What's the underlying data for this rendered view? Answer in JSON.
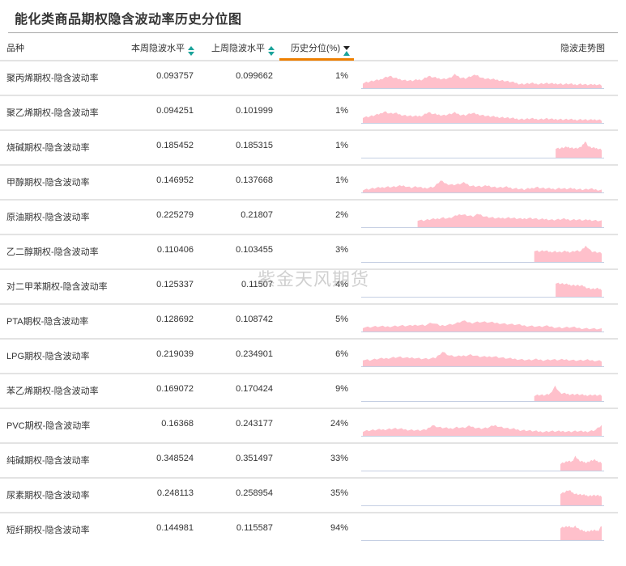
{
  "title": "能化类商品期权隐含波动率历史分位图",
  "watermark": "紫金天风期货",
  "colors": {
    "accent_orange": "#ee7f00",
    "sort_teal": "#1aa39a",
    "sort_dark": "#222222",
    "spark_fill": "#ffc0cb",
    "spark_baseline": "#c5cfe3",
    "row_border": "#e3e3e3"
  },
  "header": {
    "col_name": "品种",
    "col_this_week": "本周隐波水平",
    "col_last_week": "上周隐波水平",
    "col_percentile": "历史分位(%)",
    "col_trend": "隐波走势图",
    "sort_icons": {
      "this_week": "sort-both-icon",
      "last_week": "sort-both-icon",
      "percentile": "sort-ascending-active-icon"
    }
  },
  "rows": [
    {
      "name": "聚丙烯期权-隐含波动率",
      "this_week": "0.093757",
      "last_week": "0.099662",
      "percentile": "1%"
    },
    {
      "name": "聚乙烯期权-隐含波动率",
      "this_week": "0.094251",
      "last_week": "0.101999",
      "percentile": "1%"
    },
    {
      "name": "烧碱期权-隐含波动率",
      "this_week": "0.185452",
      "last_week": "0.185315",
      "percentile": "1%"
    },
    {
      "name": "甲醇期权-隐含波动率",
      "this_week": "0.146952",
      "last_week": "0.137668",
      "percentile": "1%"
    },
    {
      "name": "原油期权-隐含波动率",
      "this_week": "0.225279",
      "last_week": "0.21807",
      "percentile": "2%"
    },
    {
      "name": "乙二醇期权-隐含波动率",
      "this_week": "0.110406",
      "last_week": "0.103455",
      "percentile": "3%"
    },
    {
      "name": "对二甲苯期权-隐含波动率",
      "this_week": "0.125337",
      "last_week": "0.11507",
      "percentile": "4%"
    },
    {
      "name": "PTA期权-隐含波动率",
      "this_week": "0.128692",
      "last_week": "0.108742",
      "percentile": "5%"
    },
    {
      "name": "LPG期权-隐含波动率",
      "this_week": "0.219039",
      "last_week": "0.234901",
      "percentile": "6%"
    },
    {
      "name": "苯乙烯期权-隐含波动率",
      "this_week": "0.169072",
      "last_week": "0.170424",
      "percentile": "9%"
    },
    {
      "name": "PVC期权-隐含波动率",
      "this_week": "0.16368",
      "last_week": "0.243177",
      "percentile": "24%"
    },
    {
      "name": "纯碱期权-隐含波动率",
      "this_week": "0.348524",
      "last_week": "0.351497",
      "percentile": "33%"
    },
    {
      "name": "尿素期权-隐含波动率",
      "this_week": "0.248113",
      "last_week": "0.258954",
      "percentile": "35%"
    },
    {
      "name": "短纤期权-隐含波动率",
      "this_week": "0.144981",
      "last_week": "0.115587",
      "percentile": "94%"
    }
  ],
  "chart_data": {
    "type": "table",
    "title": "能化类商品期权隐含波动率历史分位图",
    "columns": [
      "品种",
      "本周隐波水平",
      "上周隐波水平",
      "历史分位(%)",
      "隐波走势图"
    ],
    "sorted_by": "历史分位(%)",
    "sort_order": "ascending",
    "categories": [
      "聚丙烯",
      "聚乙烯",
      "烧碱",
      "甲醇",
      "原油",
      "乙二醇",
      "对二甲苯",
      "PTA",
      "LPG",
      "苯乙烯",
      "PVC",
      "纯碱",
      "尿素",
      "短纤"
    ],
    "series": [
      {
        "name": "本周隐波水平",
        "values": [
          0.093757,
          0.094251,
          0.185452,
          0.146952,
          0.225279,
          0.110406,
          0.125337,
          0.128692,
          0.219039,
          0.169072,
          0.16368,
          0.348524,
          0.248113,
          0.144981
        ]
      },
      {
        "name": "上周隐波水平",
        "values": [
          0.099662,
          0.101999,
          0.185315,
          0.137668,
          0.21807,
          0.103455,
          0.11507,
          0.108742,
          0.234901,
          0.170424,
          0.243177,
          0.351497,
          0.258954,
          0.115587
        ]
      },
      {
        "name": "历史分位(%)",
        "values": [
          1,
          1,
          1,
          1,
          2,
          3,
          4,
          5,
          6,
          9,
          24,
          33,
          35,
          94
        ]
      }
    ],
    "sparklines": {
      "type": "area",
      "description": "Relative implied-volatility history per product; values normalized 0-1 (share of sparkline height). start = fraction of time axis where data begins.",
      "series": [
        {
          "name": "聚丙烯",
          "start": 0.0,
          "points": [
            0.28,
            0.32,
            0.38,
            0.42,
            0.55,
            0.62,
            0.5,
            0.45,
            0.4,
            0.38,
            0.42,
            0.45,
            0.62,
            0.55,
            0.5,
            0.48,
            0.52,
            0.7,
            0.55,
            0.5,
            0.62,
            0.68,
            0.52,
            0.48,
            0.45,
            0.42,
            0.38,
            0.33,
            0.28,
            0.22,
            0.22,
            0.25,
            0.22,
            0.24,
            0.25,
            0.22,
            0.24,
            0.2,
            0.22,
            0.18,
            0.22,
            0.18,
            0.17,
            0.2,
            0.16
          ]
        },
        {
          "name": "聚乙烯",
          "start": 0.0,
          "points": [
            0.3,
            0.32,
            0.38,
            0.45,
            0.6,
            0.48,
            0.5,
            0.42,
            0.38,
            0.35,
            0.34,
            0.38,
            0.55,
            0.45,
            0.42,
            0.4,
            0.45,
            0.52,
            0.42,
            0.4,
            0.5,
            0.45,
            0.4,
            0.35,
            0.32,
            0.3,
            0.28,
            0.25,
            0.22,
            0.2,
            0.2,
            0.22,
            0.2,
            0.2,
            0.22,
            0.18,
            0.2,
            0.18,
            0.18,
            0.16,
            0.18,
            0.16,
            0.15,
            0.18,
            0.14
          ]
        },
        {
          "name": "烧碱",
          "start": 0.81,
          "points": [
            0.5,
            0.48,
            0.52,
            0.55,
            0.5,
            0.48,
            0.52,
            0.85,
            0.55,
            0.5,
            0.48,
            0.42
          ]
        },
        {
          "name": "甲醇",
          "start": 0.0,
          "points": [
            0.15,
            0.18,
            0.22,
            0.25,
            0.3,
            0.28,
            0.32,
            0.35,
            0.25,
            0.3,
            0.22,
            0.25,
            0.3,
            0.6,
            0.45,
            0.4,
            0.42,
            0.5,
            0.35,
            0.32,
            0.3,
            0.35,
            0.28,
            0.25,
            0.28,
            0.22,
            0.2,
            0.15,
            0.2,
            0.28,
            0.22,
            0.2,
            0.18,
            0.22,
            0.18,
            0.2,
            0.18,
            0.15,
            0.18,
            0.15,
            0.12
          ]
        },
        {
          "name": "原油",
          "start": 0.23,
          "points": [
            0.38,
            0.35,
            0.4,
            0.42,
            0.5,
            0.45,
            0.55,
            0.68,
            0.62,
            0.55,
            0.68,
            0.55,
            0.5,
            0.45,
            0.48,
            0.5,
            0.45,
            0.42,
            0.48,
            0.45,
            0.4,
            0.42,
            0.38,
            0.4,
            0.42,
            0.38,
            0.4,
            0.35,
            0.38,
            0.35,
            0.32
          ]
        },
        {
          "name": "乙二醇",
          "start": 0.72,
          "points": [
            0.6,
            0.55,
            0.58,
            0.52,
            0.55,
            0.5,
            0.55,
            0.52,
            0.58,
            0.55,
            0.85,
            0.55,
            0.5,
            0.45
          ]
        },
        {
          "name": "对二甲苯",
          "start": 0.81,
          "points": [
            0.72,
            0.68,
            0.65,
            0.62,
            0.6,
            0.58,
            0.55,
            0.45,
            0.4,
            0.42,
            0.38
          ]
        },
        {
          "name": "PTA",
          "start": 0.0,
          "points": [
            0.22,
            0.24,
            0.26,
            0.25,
            0.28,
            0.3,
            0.28,
            0.35,
            0.32,
            0.45,
            0.3,
            0.35,
            0.4,
            0.55,
            0.45,
            0.5,
            0.48,
            0.45,
            0.42,
            0.38,
            0.35,
            0.3,
            0.28,
            0.25,
            0.28,
            0.22,
            0.2,
            0.22,
            0.18,
            0.16,
            0.14,
            0.12
          ]
        },
        {
          "name": "LPG",
          "start": 0.0,
          "points": [
            0.35,
            0.32,
            0.38,
            0.4,
            0.45,
            0.48,
            0.42,
            0.45,
            0.4,
            0.38,
            0.42,
            0.75,
            0.55,
            0.5,
            0.55,
            0.6,
            0.5,
            0.48,
            0.52,
            0.45,
            0.4,
            0.38,
            0.35,
            0.32,
            0.35,
            0.32,
            0.35,
            0.32,
            0.35,
            0.32,
            0.3,
            0.32,
            0.3,
            0.28
          ]
        },
        {
          "name": "苯乙烯",
          "start": 0.72,
          "points": [
            0.3,
            0.32,
            0.3,
            0.35,
            0.78,
            0.4,
            0.38,
            0.35,
            0.35,
            0.32,
            0.3,
            0.32,
            0.3,
            0.28
          ]
        },
        {
          "name": "PVC",
          "start": 0.0,
          "points": [
            0.25,
            0.28,
            0.3,
            0.32,
            0.35,
            0.38,
            0.35,
            0.32,
            0.3,
            0.28,
            0.3,
            0.55,
            0.45,
            0.4,
            0.38,
            0.45,
            0.4,
            0.5,
            0.42,
            0.38,
            0.42,
            0.55,
            0.45,
            0.38,
            0.35,
            0.3,
            0.28,
            0.25,
            0.22,
            0.22,
            0.24,
            0.22,
            0.24,
            0.22,
            0.24,
            0.22,
            0.24,
            0.3,
            0.55
          ]
        },
        {
          "name": "纯碱",
          "start": 0.83,
          "points": [
            0.38,
            0.42,
            0.48,
            0.45,
            0.75,
            0.5,
            0.45,
            0.42,
            0.5,
            0.55,
            0.48,
            0.4
          ]
        },
        {
          "name": "尿素",
          "start": 0.83,
          "points": [
            0.62,
            0.68,
            0.78,
            0.65,
            0.58,
            0.55,
            0.52,
            0.5,
            0.52,
            0.5,
            0.48
          ]
        },
        {
          "name": "短纤",
          "start": 0.83,
          "points": [
            0.65,
            0.68,
            0.7,
            0.65,
            0.72,
            0.55,
            0.48,
            0.45,
            0.48,
            0.5,
            0.48,
            0.75
          ]
        }
      ]
    }
  }
}
